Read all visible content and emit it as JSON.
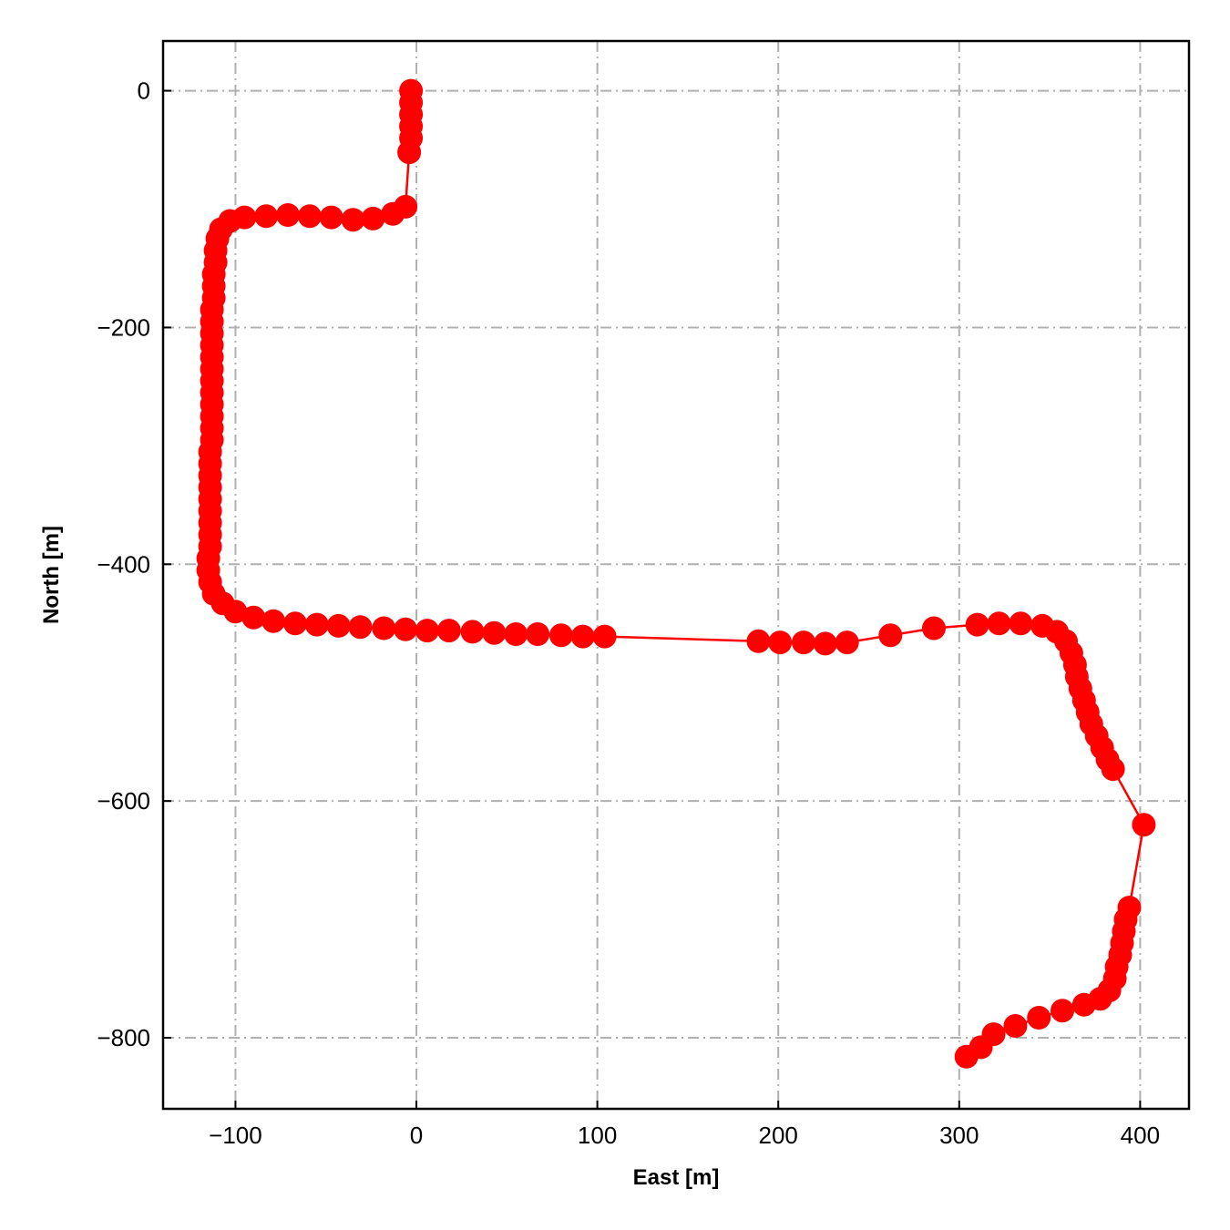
{
  "chart_data": {
    "type": "line",
    "xlabel": "East [m]",
    "ylabel": "North [m]",
    "xlim": [
      -140,
      427
    ],
    "ylim": [
      -860,
      42
    ],
    "xticks": [
      -100,
      0,
      100,
      200,
      300,
      400
    ],
    "yticks": [
      -800,
      -600,
      -400,
      -200,
      0
    ],
    "xtick_labels": [
      "−100",
      "0",
      "100",
      "200",
      "300",
      "400"
    ],
    "ytick_labels": [
      "−800",
      "−600",
      "−400",
      "−200",
      "0"
    ],
    "grid": true,
    "grid_style": "dash-dot",
    "series": [
      {
        "color": "#ff0000",
        "marker": "circle",
        "points": [
          [
            -3,
            0
          ],
          [
            -3,
            -10
          ],
          [
            -3,
            -20
          ],
          [
            -3,
            -30
          ],
          [
            -3,
            -40
          ],
          [
            -4,
            -52
          ],
          [
            -6,
            -98
          ],
          [
            -13,
            -104
          ],
          [
            -24,
            -108
          ],
          [
            -35,
            -109
          ],
          [
            -47,
            -107
          ],
          [
            -59,
            -106
          ],
          [
            -71,
            -105
          ],
          [
            -83,
            -106
          ],
          [
            -95,
            -107
          ],
          [
            -103,
            -110
          ],
          [
            -108,
            -117
          ],
          [
            -110,
            -125
          ],
          [
            -111,
            -135
          ],
          [
            -111,
            -145
          ],
          [
            -112,
            -155
          ],
          [
            -112,
            -165
          ],
          [
            -112,
            -175
          ],
          [
            -113,
            -185
          ],
          [
            -113,
            -195
          ],
          [
            -113,
            -205
          ],
          [
            -113,
            -215
          ],
          [
            -113,
            -225
          ],
          [
            -113,
            -235
          ],
          [
            -113,
            -245
          ],
          [
            -113,
            -255
          ],
          [
            -113,
            -265
          ],
          [
            -113,
            -275
          ],
          [
            -113,
            -285
          ],
          [
            -113,
            -295
          ],
          [
            -114,
            -305
          ],
          [
            -114,
            -315
          ],
          [
            -114,
            -325
          ],
          [
            -114,
            -335
          ],
          [
            -114,
            -345
          ],
          [
            -114,
            -355
          ],
          [
            -114,
            -365
          ],
          [
            -114,
            -375
          ],
          [
            -114,
            -385
          ],
          [
            -115,
            -395
          ],
          [
            -115,
            -405
          ],
          [
            -114,
            -415
          ],
          [
            -112,
            -425
          ],
          [
            -107,
            -433
          ],
          [
            -100,
            -440
          ],
          [
            -90,
            -445
          ],
          [
            -79,
            -448
          ],
          [
            -67,
            -450
          ],
          [
            -55,
            -451
          ],
          [
            -43,
            -452
          ],
          [
            -31,
            -453
          ],
          [
            -18,
            -454
          ],
          [
            -6,
            -455
          ],
          [
            6,
            -456
          ],
          [
            18,
            -456
          ],
          [
            31,
            -457
          ],
          [
            43,
            -458
          ],
          [
            55,
            -459
          ],
          [
            67,
            -459
          ],
          [
            80,
            -460
          ],
          [
            92,
            -461
          ],
          [
            104,
            -461
          ],
          [
            189,
            -465
          ],
          [
            201,
            -466
          ],
          [
            214,
            -466
          ],
          [
            226,
            -467
          ],
          [
            238,
            -466
          ],
          [
            262,
            -460
          ],
          [
            286,
            -454
          ],
          [
            310,
            -451
          ],
          [
            322,
            -450
          ],
          [
            334,
            -450
          ],
          [
            346,
            -452
          ],
          [
            354,
            -457
          ],
          [
            359,
            -465
          ],
          [
            362,
            -475
          ],
          [
            364,
            -485
          ],
          [
            365,
            -495
          ],
          [
            367,
            -505
          ],
          [
            369,
            -515
          ],
          [
            371,
            -525
          ],
          [
            373,
            -535
          ],
          [
            376,
            -545
          ],
          [
            379,
            -555
          ],
          [
            382,
            -565
          ],
          [
            385,
            -573
          ],
          [
            402,
            -620
          ],
          [
            394,
            -690
          ],
          [
            392,
            -700
          ],
          [
            391,
            -710
          ],
          [
            390,
            -720
          ],
          [
            389,
            -730
          ],
          [
            387,
            -740
          ],
          [
            386,
            -750
          ],
          [
            383,
            -760
          ],
          [
            378,
            -767
          ],
          [
            369,
            -772
          ],
          [
            357,
            -777
          ],
          [
            344,
            -783
          ],
          [
            331,
            -790
          ],
          [
            319,
            -797
          ],
          [
            312,
            -808
          ],
          [
            304,
            -816
          ]
        ]
      }
    ]
  }
}
